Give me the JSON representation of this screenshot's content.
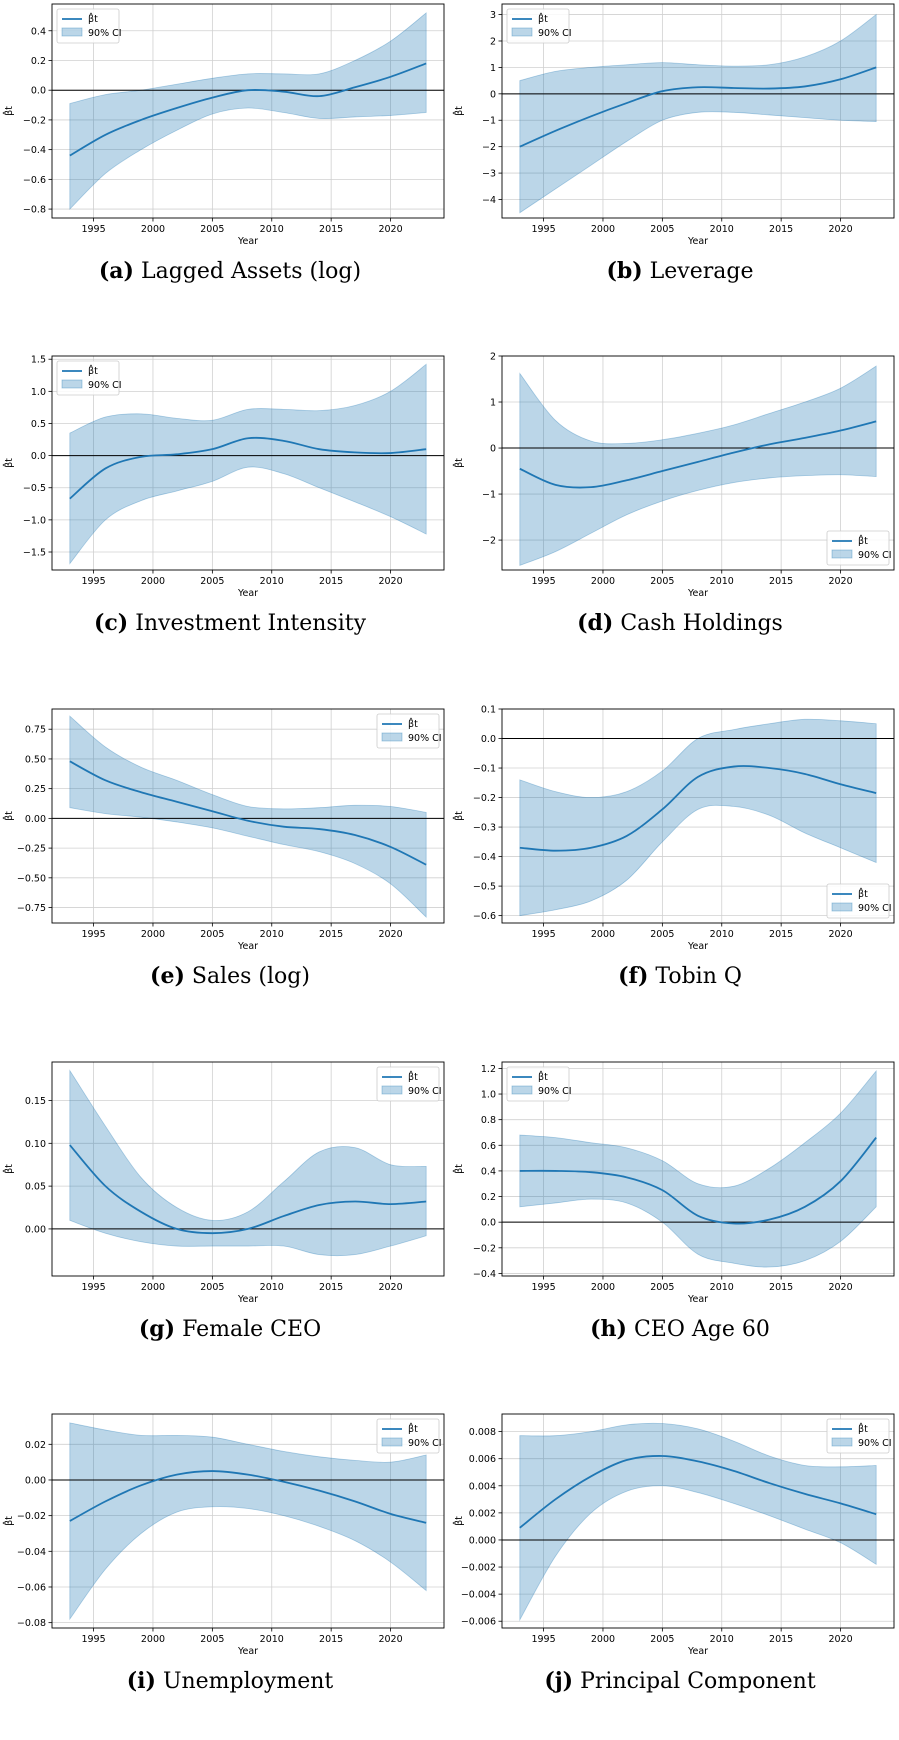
{
  "legend": {
    "line_label": "β̂t",
    "band_label": "90% CI"
  },
  "colors": {
    "line": "#1f77b4",
    "band": "#1f77b4",
    "zero": "#000000",
    "grid": "#d0d0d0"
  },
  "chart_data": [
    {
      "type": "line",
      "tag": "(a)",
      "caption": "Lagged Assets (log)",
      "xlabel": "Year",
      "ylabel": "β̂t",
      "xlim": [
        1991.5,
        2024.5
      ],
      "ylim": [
        -0.86,
        0.58
      ],
      "xticks": [
        1995,
        2000,
        2005,
        2010,
        2015,
        2020
      ],
      "yticks": [
        -0.8,
        -0.6,
        -0.4,
        -0.2,
        0.0,
        0.2,
        0.4
      ],
      "ytick_labels": [
        "−0.8",
        "−0.6",
        "−0.4",
        "−0.2",
        "0.0",
        "0.2",
        "0.4"
      ],
      "legend_pos": "top-left",
      "grid": true,
      "x": [
        1993,
        1996,
        1999,
        2002,
        2005,
        2008,
        2011,
        2014,
        2017,
        2020,
        2023
      ],
      "series": [
        {
          "name": "β̂t",
          "values": [
            -0.44,
            -0.3,
            -0.2,
            -0.12,
            -0.05,
            0.0,
            -0.01,
            -0.04,
            0.02,
            0.09,
            0.18
          ]
        },
        {
          "name": "90% CI",
          "lower": [
            -0.8,
            -0.56,
            -0.4,
            -0.27,
            -0.16,
            -0.12,
            -0.15,
            -0.19,
            -0.18,
            -0.17,
            -0.15
          ],
          "upper": [
            -0.09,
            -0.03,
            0.0,
            0.04,
            0.08,
            0.11,
            0.11,
            0.11,
            0.2,
            0.33,
            0.52
          ]
        }
      ]
    },
    {
      "type": "line",
      "tag": "(b)",
      "caption": "Leverage",
      "xlabel": "Year",
      "ylabel": "β̂t",
      "xlim": [
        1991.5,
        2024.5
      ],
      "ylim": [
        -4.7,
        3.4
      ],
      "xticks": [
        1995,
        2000,
        2005,
        2010,
        2015,
        2020
      ],
      "yticks": [
        -4,
        -3,
        -2,
        -1,
        0,
        1,
        2,
        3
      ],
      "ytick_labels": [
        "−4",
        "−3",
        "−2",
        "−1",
        "0",
        "1",
        "2",
        "3"
      ],
      "legend_pos": "top-left",
      "grid": true,
      "x": [
        1993,
        1996,
        1999,
        2002,
        2005,
        2008,
        2011,
        2014,
        2017,
        2020,
        2023
      ],
      "series": [
        {
          "name": "β̂t",
          "values": [
            -2.0,
            -1.4,
            -0.85,
            -0.35,
            0.1,
            0.25,
            0.22,
            0.2,
            0.28,
            0.55,
            1.0
          ]
        },
        {
          "name": "90% CI",
          "lower": [
            -4.5,
            -3.6,
            -2.7,
            -1.8,
            -1.0,
            -0.7,
            -0.7,
            -0.8,
            -0.9,
            -1.0,
            -1.05
          ],
          "upper": [
            0.5,
            0.85,
            1.0,
            1.1,
            1.18,
            1.1,
            1.05,
            1.1,
            1.4,
            2.0,
            3.0
          ]
        }
      ]
    },
    {
      "type": "line",
      "tag": "(c)",
      "caption": "Investment Intensity",
      "xlabel": "Year",
      "ylabel": "β̂t",
      "xlim": [
        1991.5,
        2024.5
      ],
      "ylim": [
        -1.78,
        1.55
      ],
      "xticks": [
        1995,
        2000,
        2005,
        2010,
        2015,
        2020
      ],
      "yticks": [
        -1.5,
        -1.0,
        -0.5,
        0.0,
        0.5,
        1.0,
        1.5
      ],
      "ytick_labels": [
        "−1.5",
        "−1.0",
        "−0.5",
        "0.0",
        "0.5",
        "1.0",
        "1.5"
      ],
      "legend_pos": "top-left",
      "grid": true,
      "x": [
        1993,
        1996,
        1999,
        2002,
        2005,
        2008,
        2011,
        2014,
        2017,
        2020,
        2023
      ],
      "series": [
        {
          "name": "β̂t",
          "values": [
            -0.67,
            -0.2,
            -0.02,
            0.02,
            0.1,
            0.27,
            0.23,
            0.1,
            0.05,
            0.04,
            0.1
          ]
        },
        {
          "name": "90% CI",
          "lower": [
            -1.68,
            -1.0,
            -0.7,
            -0.55,
            -0.4,
            -0.18,
            -0.28,
            -0.5,
            -0.72,
            -0.95,
            -1.22
          ],
          "upper": [
            0.35,
            0.6,
            0.65,
            0.58,
            0.55,
            0.72,
            0.72,
            0.7,
            0.78,
            1.0,
            1.42
          ]
        }
      ]
    },
    {
      "type": "line",
      "tag": "(d)",
      "caption": "Cash Holdings",
      "xlabel": "Year",
      "ylabel": "β̂t",
      "xlim": [
        1991.5,
        2024.5
      ],
      "ylim": [
        -2.65,
        2.0
      ],
      "xticks": [
        1995,
        2000,
        2005,
        2010,
        2015,
        2020
      ],
      "yticks": [
        -2,
        -1,
        0,
        1,
        2
      ],
      "ytick_labels": [
        "−2",
        "−1",
        "0",
        "1",
        "2"
      ],
      "legend_pos": "bottom-right",
      "grid": true,
      "x": [
        1993,
        1996,
        1999,
        2002,
        2005,
        2008,
        2011,
        2014,
        2017,
        2020,
        2023
      ],
      "series": [
        {
          "name": "β̂t",
          "values": [
            -0.45,
            -0.8,
            -0.85,
            -0.7,
            -0.5,
            -0.3,
            -0.1,
            0.08,
            0.22,
            0.38,
            0.58
          ]
        },
        {
          "name": "90% CI",
          "lower": [
            -2.55,
            -2.25,
            -1.85,
            -1.45,
            -1.15,
            -0.92,
            -0.75,
            -0.65,
            -0.6,
            -0.58,
            -0.62
          ],
          "upper": [
            1.62,
            0.6,
            0.15,
            0.1,
            0.18,
            0.32,
            0.5,
            0.75,
            1.0,
            1.3,
            1.78
          ]
        }
      ]
    },
    {
      "type": "line",
      "tag": "(e)",
      "caption": "Sales (log)",
      "xlabel": "Year",
      "ylabel": "β̂t",
      "xlim": [
        1991.5,
        2024.5
      ],
      "ylim": [
        -0.88,
        0.92
      ],
      "xticks": [
        1995,
        2000,
        2005,
        2010,
        2015,
        2020
      ],
      "yticks": [
        -0.75,
        -0.5,
        -0.25,
        0.0,
        0.25,
        0.5,
        0.75
      ],
      "ytick_labels": [
        "−0.75",
        "−0.50",
        "−0.25",
        "0.00",
        "0.25",
        "0.50",
        "0.75"
      ],
      "legend_pos": "top-right",
      "grid": true,
      "x": [
        1993,
        1996,
        1999,
        2002,
        2005,
        2008,
        2011,
        2014,
        2017,
        2020,
        2023
      ],
      "series": [
        {
          "name": "β̂t",
          "values": [
            0.48,
            0.32,
            0.22,
            0.14,
            0.06,
            -0.02,
            -0.07,
            -0.09,
            -0.14,
            -0.24,
            -0.39
          ]
        },
        {
          "name": "90% CI",
          "lower": [
            0.09,
            0.04,
            0.01,
            -0.03,
            -0.08,
            -0.15,
            -0.22,
            -0.28,
            -0.38,
            -0.55,
            -0.83
          ],
          "upper": [
            0.86,
            0.6,
            0.43,
            0.32,
            0.2,
            0.1,
            0.08,
            0.09,
            0.11,
            0.1,
            0.05
          ]
        }
      ]
    },
    {
      "type": "line",
      "tag": "(f)",
      "caption": "Tobin Q",
      "xlabel": "Year",
      "ylabel": "β̂t",
      "xlim": [
        1991.5,
        2024.5
      ],
      "ylim": [
        -0.625,
        0.1
      ],
      "xticks": [
        1995,
        2000,
        2005,
        2010,
        2015,
        2020
      ],
      "yticks": [
        -0.6,
        -0.5,
        -0.4,
        -0.3,
        -0.2,
        -0.1,
        0.0,
        0.1
      ],
      "ytick_labels": [
        "−0.6",
        "−0.5",
        "−0.4",
        "−0.3",
        "−0.2",
        "−0.1",
        "0.0",
        "0.1"
      ],
      "legend_pos": "bottom-right",
      "grid": true,
      "x": [
        1993,
        1996,
        1999,
        2002,
        2005,
        2008,
        2011,
        2014,
        2017,
        2020,
        2023
      ],
      "series": [
        {
          "name": "β̂t",
          "values": [
            -0.37,
            -0.38,
            -0.37,
            -0.33,
            -0.24,
            -0.13,
            -0.095,
            -0.1,
            -0.12,
            -0.155,
            -0.185
          ]
        },
        {
          "name": "90% CI",
          "lower": [
            -0.6,
            -0.58,
            -0.55,
            -0.48,
            -0.35,
            -0.24,
            -0.23,
            -0.26,
            -0.32,
            -0.37,
            -0.42
          ],
          "upper": [
            -0.14,
            -0.18,
            -0.2,
            -0.18,
            -0.11,
            0.0,
            0.03,
            0.05,
            0.065,
            0.06,
            0.05
          ]
        }
      ]
    },
    {
      "type": "line",
      "tag": "(g)",
      "caption": "Female CEO",
      "xlabel": "Year",
      "ylabel": "β̂t",
      "xlim": [
        1991.5,
        2024.5
      ],
      "ylim": [
        -0.055,
        0.195
      ],
      "xticks": [
        1995,
        2000,
        2005,
        2010,
        2015,
        2020
      ],
      "yticks": [
        0.0,
        0.05,
        0.1,
        0.15
      ],
      "ytick_labels": [
        "0.00",
        "0.05",
        "0.10",
        "0.15"
      ],
      "legend_pos": "top-right",
      "grid": true,
      "x": [
        1993,
        1996,
        1999,
        2002,
        2005,
        2008,
        2011,
        2014,
        2017,
        2020,
        2023
      ],
      "series": [
        {
          "name": "β̂t",
          "values": [
            0.098,
            0.05,
            0.02,
            0.0,
            -0.005,
            0.0,
            0.015,
            0.028,
            0.032,
            0.029,
            0.032
          ]
        },
        {
          "name": "90% CI",
          "lower": [
            0.01,
            -0.005,
            -0.015,
            -0.02,
            -0.02,
            -0.02,
            -0.02,
            -0.03,
            -0.03,
            -0.02,
            -0.008
          ],
          "upper": [
            0.185,
            0.12,
            0.06,
            0.025,
            0.01,
            0.02,
            0.055,
            0.09,
            0.095,
            0.075,
            0.073
          ]
        }
      ]
    },
    {
      "type": "line",
      "tag": "(h)",
      "caption": "CEO Age 60",
      "xlabel": "Year",
      "ylabel": "β̂t",
      "xlim": [
        1991.5,
        2024.5
      ],
      "ylim": [
        -0.42,
        1.25
      ],
      "xticks": [
        1995,
        2000,
        2005,
        2010,
        2015,
        2020
      ],
      "yticks": [
        -0.4,
        -0.2,
        0.0,
        0.2,
        0.4,
        0.6,
        0.8,
        1.0,
        1.2
      ],
      "ytick_labels": [
        "−0.4",
        "−0.2",
        "0.0",
        "0.2",
        "0.4",
        "0.6",
        "0.8",
        "1.0",
        "1.2"
      ],
      "legend_pos": "top-left",
      "grid": true,
      "x": [
        1993,
        1996,
        1999,
        2002,
        2005,
        2008,
        2011,
        2014,
        2017,
        2020,
        2023
      ],
      "series": [
        {
          "name": "β̂t",
          "values": [
            0.4,
            0.4,
            0.39,
            0.35,
            0.25,
            0.05,
            -0.01,
            0.02,
            0.12,
            0.32,
            0.66
          ]
        },
        {
          "name": "90% CI",
          "lower": [
            0.12,
            0.15,
            0.18,
            0.15,
            0.0,
            -0.25,
            -0.32,
            -0.35,
            -0.3,
            -0.15,
            0.12
          ],
          "upper": [
            0.68,
            0.66,
            0.62,
            0.58,
            0.48,
            0.3,
            0.28,
            0.42,
            0.62,
            0.85,
            1.18
          ]
        }
      ]
    },
    {
      "type": "line",
      "tag": "(i)",
      "caption": "Unemployment",
      "xlabel": "Year",
      "ylabel": "β̂t",
      "xlim": [
        1991.5,
        2024.5
      ],
      "ylim": [
        -0.083,
        0.037
      ],
      "xticks": [
        1995,
        2000,
        2005,
        2010,
        2015,
        2020
      ],
      "yticks": [
        -0.08,
        -0.06,
        -0.04,
        -0.02,
        0.0,
        0.02
      ],
      "ytick_labels": [
        "−0.08",
        "−0.06",
        "−0.04",
        "−0.02",
        "0.00",
        "0.02"
      ],
      "legend_pos": "top-right",
      "grid": true,
      "x": [
        1993,
        1996,
        1999,
        2002,
        2005,
        2008,
        2011,
        2014,
        2017,
        2020,
        2023
      ],
      "series": [
        {
          "name": "β̂t",
          "values": [
            -0.023,
            -0.012,
            -0.003,
            0.003,
            0.005,
            0.003,
            -0.001,
            -0.006,
            -0.012,
            -0.019,
            -0.024
          ]
        },
        {
          "name": "90% CI",
          "lower": [
            -0.078,
            -0.05,
            -0.03,
            -0.018,
            -0.015,
            -0.016,
            -0.02,
            -0.026,
            -0.034,
            -0.046,
            -0.062
          ],
          "upper": [
            0.032,
            0.028,
            0.025,
            0.025,
            0.024,
            0.02,
            0.016,
            0.013,
            0.011,
            0.01,
            0.014
          ]
        }
      ]
    },
    {
      "type": "line",
      "tag": "(j)",
      "caption": "Principal Component",
      "xlabel": "Year",
      "ylabel": "β̂t",
      "xlim": [
        1991.5,
        2024.5
      ],
      "ylim": [
        -0.0065,
        0.0093
      ],
      "xticks": [
        1995,
        2000,
        2005,
        2010,
        2015,
        2020
      ],
      "yticks": [
        -0.006,
        -0.004,
        -0.002,
        0.0,
        0.002,
        0.004,
        0.006,
        0.008
      ],
      "ytick_labels": [
        "−0.006",
        "−0.004",
        "−0.002",
        "0.000",
        "0.002",
        "0.004",
        "0.006",
        "0.008"
      ],
      "legend_pos": "top-right",
      "grid": true,
      "x": [
        1993,
        1996,
        1999,
        2002,
        2005,
        2008,
        2011,
        2014,
        2017,
        2020,
        2023
      ],
      "series": [
        {
          "name": "β̂t",
          "values": [
            0.0009,
            0.003,
            0.0047,
            0.0059,
            0.0062,
            0.0058,
            0.0051,
            0.0042,
            0.0034,
            0.0027,
            0.0019
          ]
        },
        {
          "name": "90% CI",
          "lower": [
            -0.0059,
            -0.0012,
            0.002,
            0.0036,
            0.004,
            0.0035,
            0.0027,
            0.0018,
            0.0008,
            -0.0002,
            -0.0018
          ],
          "upper": [
            0.0077,
            0.0077,
            0.008,
            0.0085,
            0.0086,
            0.0082,
            0.0073,
            0.0062,
            0.0055,
            0.0054,
            0.0055
          ]
        }
      ]
    }
  ]
}
